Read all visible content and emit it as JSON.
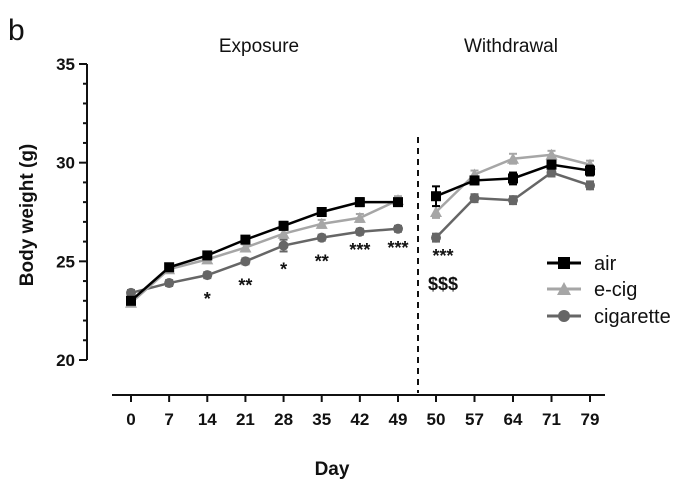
{
  "panel_label": "b",
  "chart_data": {
    "type": "line",
    "title": "",
    "xlabel": "Day",
    "ylabel": "Body weight (g)",
    "ylim": [
      20,
      35
    ],
    "yticks": [
      "20",
      "25",
      "30",
      "35"
    ],
    "categories": [
      "0",
      "7",
      "14",
      "21",
      "28",
      "35",
      "42",
      "49",
      "50",
      "57",
      "64",
      "71",
      "79"
    ],
    "phases": [
      {
        "label": "Exposure"
      },
      {
        "label": "Withdrawal"
      }
    ],
    "legend_position": "right",
    "series": [
      {
        "name": "air",
        "color": "#000000",
        "marker": "square",
        "values": [
          23.0,
          24.7,
          25.3,
          26.1,
          26.8,
          27.5,
          28.0,
          28.0,
          28.3,
          29.1,
          29.2,
          29.9,
          29.6
        ],
        "error": [
          0.15,
          0.15,
          0.15,
          0.15,
          0.2,
          0.2,
          0.2,
          0.15,
          0.5,
          0.2,
          0.3,
          0.2,
          0.25
        ]
      },
      {
        "name": "e-cig",
        "color": "#a6a6a6",
        "marker": "triangle",
        "values": [
          22.9,
          24.6,
          25.1,
          25.7,
          26.4,
          26.9,
          27.2,
          28.1,
          27.5,
          29.4,
          30.2,
          30.4,
          29.9
        ],
        "error": [
          0.15,
          0.15,
          0.15,
          0.15,
          0.2,
          0.2,
          0.2,
          0.2,
          0.3,
          0.2,
          0.25,
          0.2,
          0.2
        ]
      },
      {
        "name": "cigarette",
        "color": "#666666",
        "marker": "circle",
        "values": [
          23.4,
          23.9,
          24.3,
          25.0,
          25.8,
          26.2,
          26.5,
          26.65,
          26.2,
          28.2,
          28.1,
          29.5,
          28.85
        ],
        "error": [
          0.15,
          0.15,
          0.15,
          0.15,
          0.3,
          0.15,
          0.15,
          0.15,
          0.2,
          0.2,
          0.2,
          0.2,
          0.2
        ]
      }
    ],
    "annotations": [
      {
        "category": "14",
        "text": "*"
      },
      {
        "category": "21",
        "text": "**"
      },
      {
        "category": "28",
        "text": "*"
      },
      {
        "category": "35",
        "text": "**"
      },
      {
        "category": "42",
        "text": "***"
      },
      {
        "category": "49",
        "text": "***"
      },
      {
        "category": "50",
        "text": "***"
      },
      {
        "category": "50",
        "text": "$$$"
      }
    ]
  }
}
